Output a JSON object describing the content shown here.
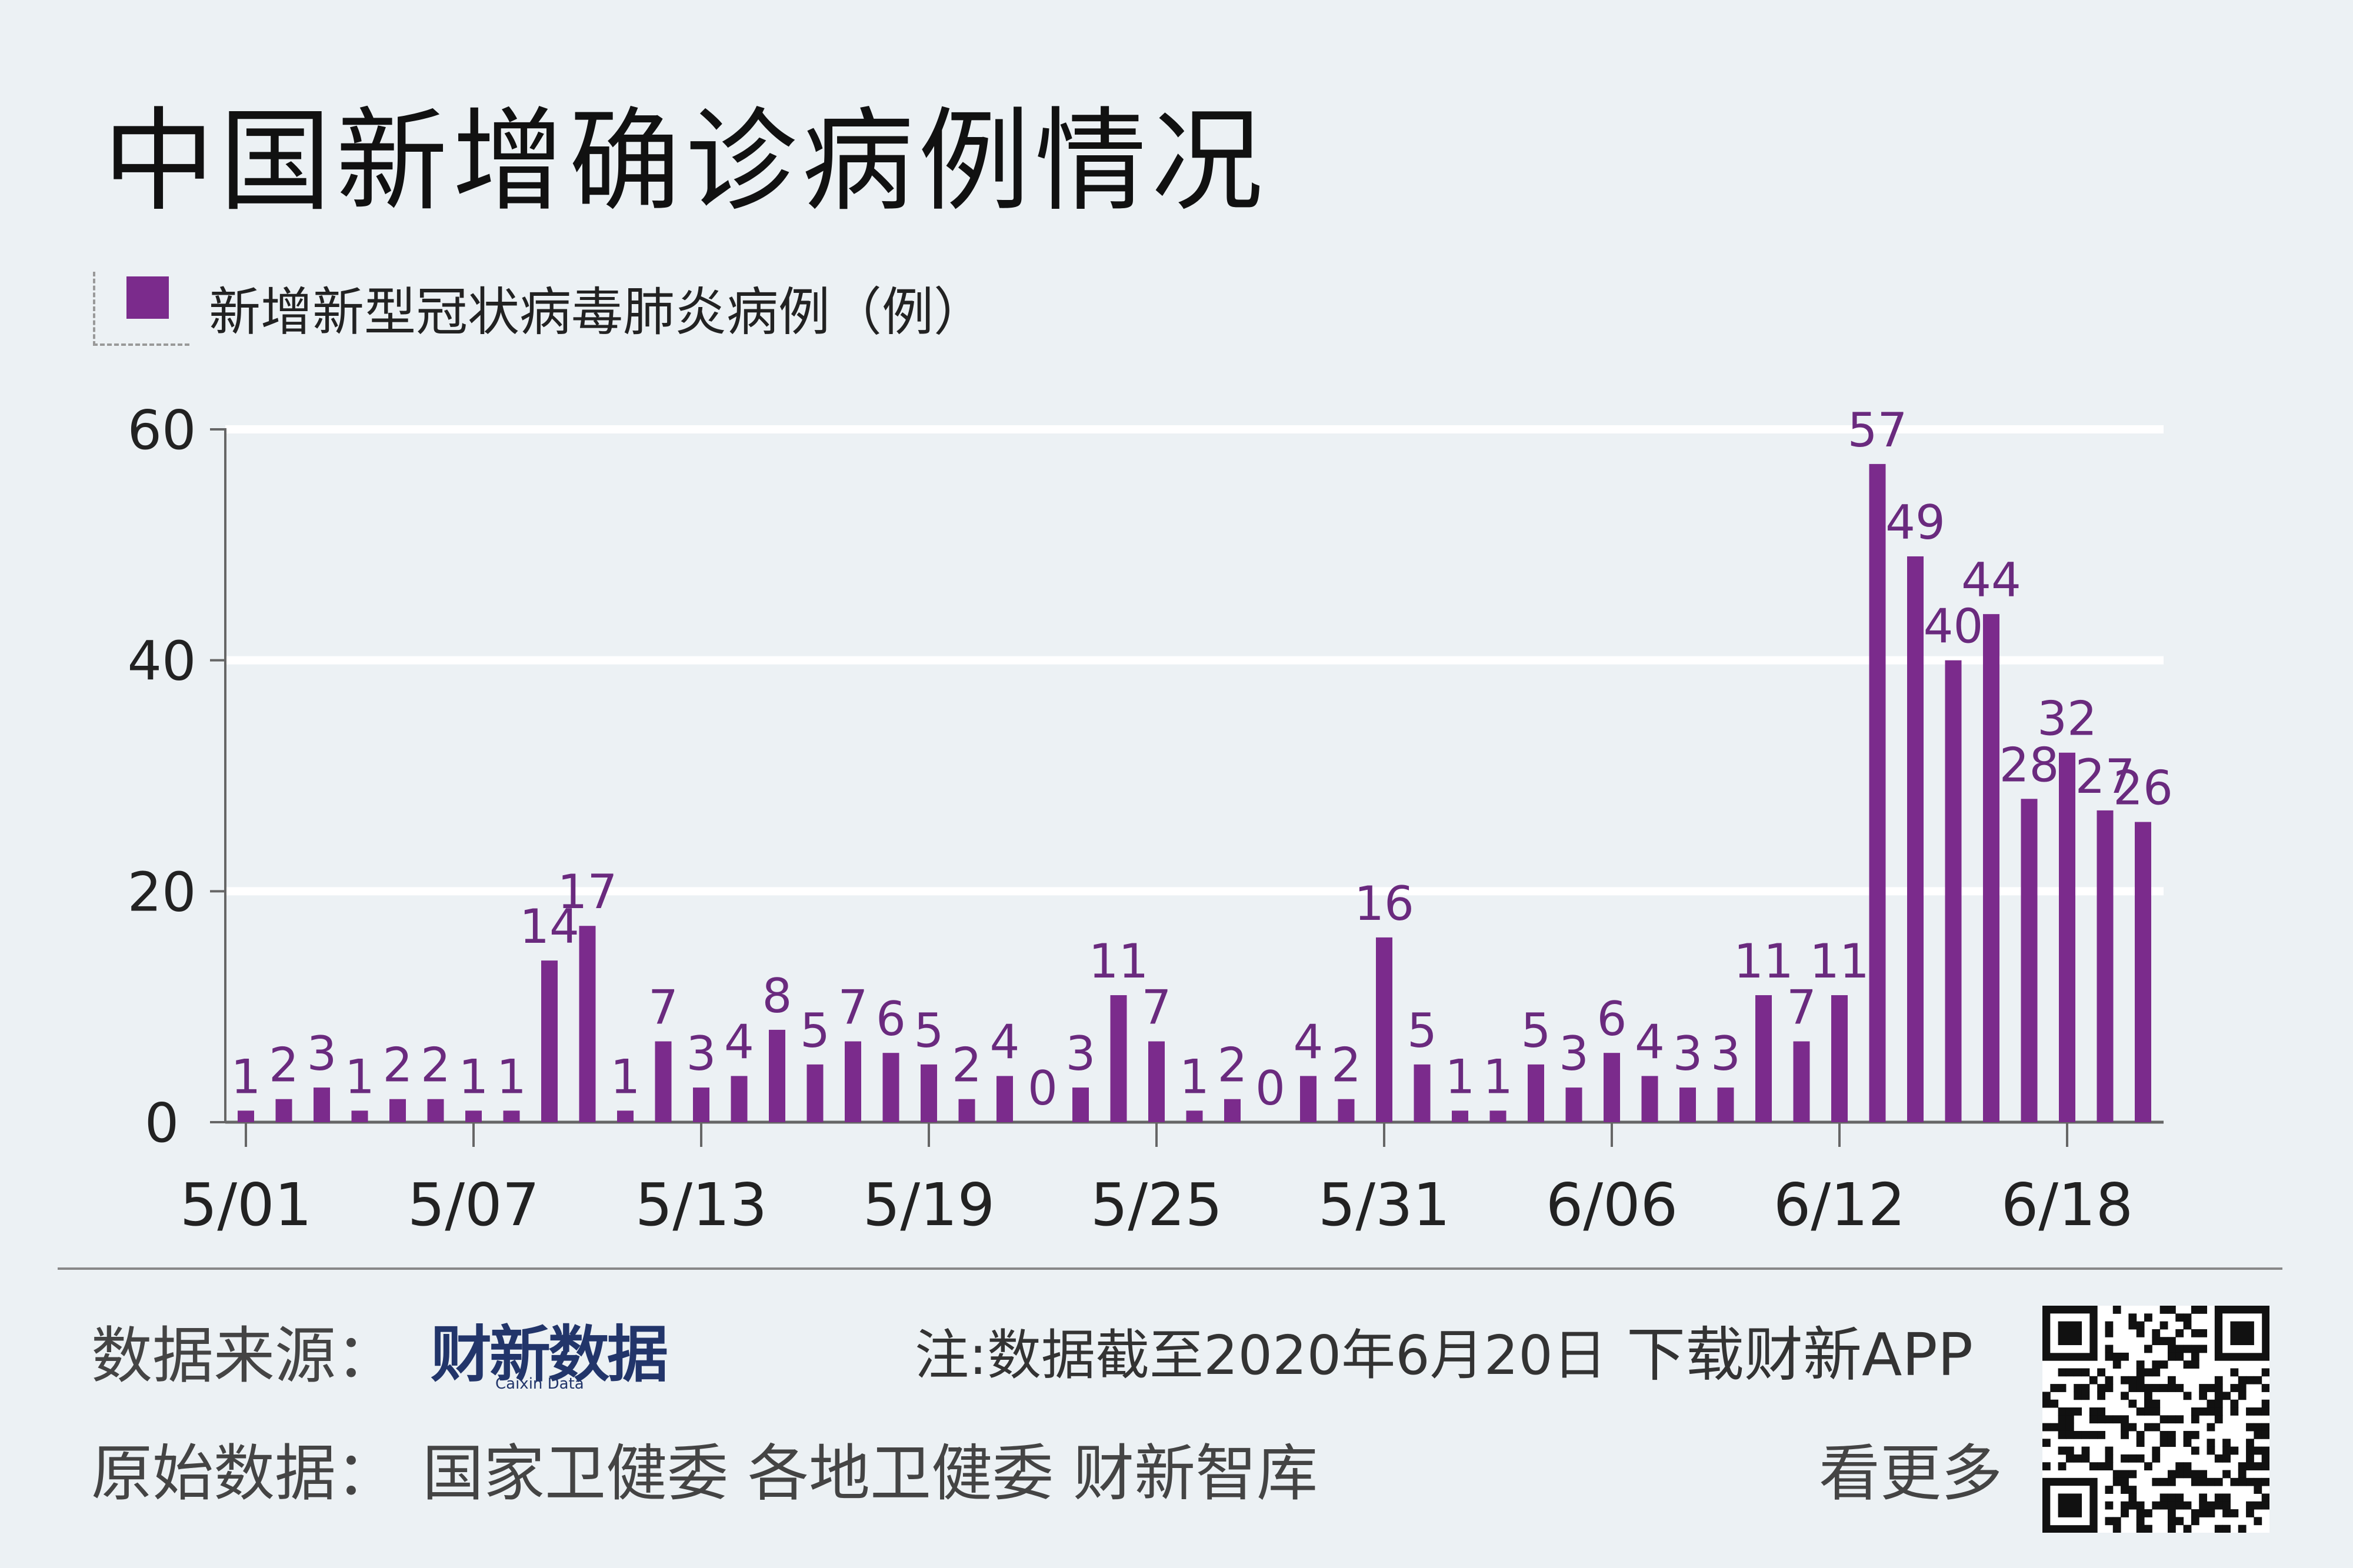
{
  "title": "中国新增确诊病例情况",
  "legend": {
    "label": "新增新型冠状病毒肺炎病例（例）"
  },
  "colors": {
    "bar": "#7b2b8c",
    "label": "#6a2a7e",
    "background": "#ecf1f4",
    "grid": "#ffffff"
  },
  "chart_data": {
    "type": "bar",
    "categories": [
      "5/01",
      "5/02",
      "5/03",
      "5/04",
      "5/05",
      "5/06",
      "5/07",
      "5/08",
      "5/09",
      "5/10",
      "5/11",
      "5/12",
      "5/13",
      "5/14",
      "5/15",
      "5/16",
      "5/17",
      "5/18",
      "5/19",
      "5/20",
      "5/21",
      "5/22",
      "5/23",
      "5/24",
      "5/25",
      "5/26",
      "5/27",
      "5/28",
      "5/29",
      "5/30",
      "5/31",
      "6/01",
      "6/02",
      "6/03",
      "6/04",
      "6/05",
      "6/06",
      "6/07",
      "6/08",
      "6/09",
      "6/10",
      "6/11",
      "6/12",
      "6/13",
      "6/14",
      "6/15",
      "6/16",
      "6/17",
      "6/18",
      "6/19",
      "6/20"
    ],
    "values": [
      1,
      2,
      3,
      1,
      2,
      2,
      1,
      1,
      14,
      17,
      1,
      7,
      3,
      4,
      8,
      5,
      7,
      6,
      5,
      2,
      4,
      0,
      3,
      11,
      7,
      1,
      2,
      0,
      4,
      2,
      16,
      5,
      1,
      1,
      5,
      3,
      6,
      4,
      3,
      3,
      11,
      7,
      11,
      57,
      49,
      40,
      44,
      28,
      32,
      27,
      26
    ],
    "x_ticks": [
      "5/01",
      "5/07",
      "5/13",
      "5/19",
      "5/25",
      "5/31",
      "6/06",
      "6/12",
      "6/18"
    ],
    "y_ticks": [
      0,
      20,
      40,
      60
    ],
    "ylim": [
      0,
      60
    ],
    "grid": true,
    "data_labels": true
  },
  "footer": {
    "source_label": "数据来源：",
    "brand": "财新数据",
    "brand_sub": "Caixin Data",
    "note": "注:数据截至2020年6月20日",
    "download": "下载财新APP",
    "original_label": "原始数据：",
    "original_sources": "国家卫健委  各地卫健委  财新智库",
    "more": "看更多"
  },
  "qr_icon": "qr-code-icon"
}
